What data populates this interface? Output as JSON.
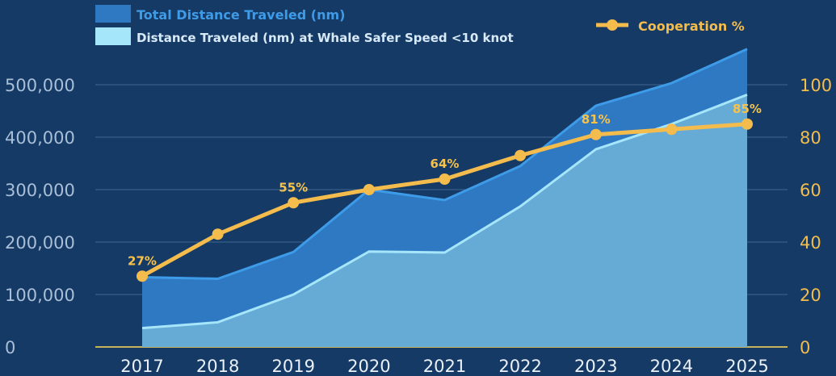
{
  "colors": {
    "background": "#163a66",
    "total_area": "#2f79c3",
    "total_line": "#3e9be8",
    "safe_area": "#66abd6",
    "safe_line": "#a6e6fb",
    "cooperation": "#f4bc4c",
    "grid": "#3d6590",
    "left_axis_text": "#a9bfd8",
    "right_axis_text": "#f2bd4d"
  },
  "legend": {
    "total": "Total Distance Traveled (nm)",
    "safe": "Distance Traveled (nm) at Whale Safer Speed <10 knot",
    "cooperation": "Cooperation %"
  },
  "chart_data": {
    "type": "area",
    "categories": [
      "2017",
      "2018",
      "2019",
      "2020",
      "2021",
      "2022",
      "2023",
      "2024",
      "2025"
    ],
    "series": [
      {
        "name": "Total Distance Traveled (nm)",
        "type": "area",
        "axis": "left",
        "values": [
          133000,
          130000,
          181000,
          300000,
          280000,
          345000,
          460000,
          503000,
          568000
        ]
      },
      {
        "name": "Distance Traveled (nm) at Whale Safer Speed <10 knot",
        "type": "area",
        "axis": "left",
        "values": [
          36000,
          47000,
          100000,
          182000,
          180000,
          268000,
          377000,
          425000,
          481000
        ]
      },
      {
        "name": "Cooperation %",
        "type": "line",
        "axis": "right",
        "values": [
          27,
          43,
          55,
          60,
          64,
          73,
          81,
          83,
          85
        ]
      }
    ],
    "point_labels": [
      {
        "index": 0,
        "text": "27%"
      },
      {
        "index": 2,
        "text": "55%"
      },
      {
        "index": 4,
        "text": "64%"
      },
      {
        "index": 6,
        "text": "81%"
      },
      {
        "index": 8,
        "text": "85%"
      }
    ],
    "left_axis": {
      "ticks": [
        "0",
        "100,000",
        "200,000",
        "300,000",
        "400,000",
        "500,000"
      ],
      "range": [
        0,
        500000
      ]
    },
    "right_axis": {
      "ticks": [
        "0",
        "20",
        "40",
        "60",
        "80",
        "100"
      ],
      "range": [
        0,
        100
      ]
    },
    "grid": true,
    "legend_position": "top"
  }
}
